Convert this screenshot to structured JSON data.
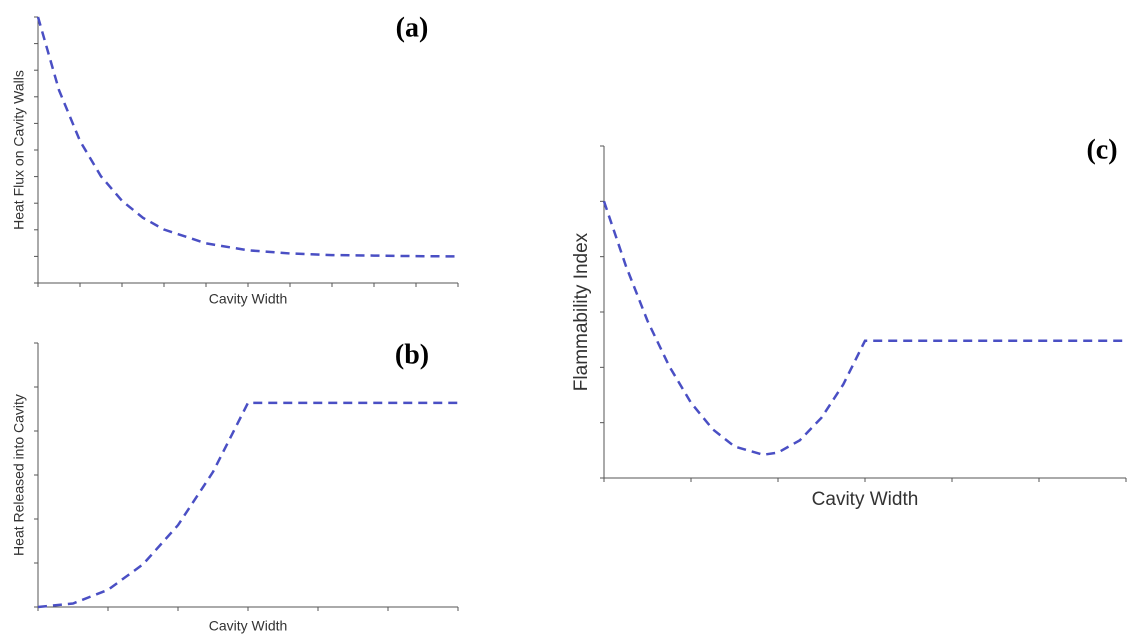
{
  "chart_data": [
    {
      "type": "line",
      "annotation": "(a)",
      "xlabel": "Cavity Width",
      "ylabel": "Heat Flux on Cavity Walls",
      "x": [
        0,
        0.5,
        1,
        1.5,
        2,
        2.5,
        3,
        4,
        5,
        6,
        7,
        8,
        9,
        10
      ],
      "values": [
        10,
        7.25,
        5.34,
        4.01,
        3.09,
        2.45,
        2.01,
        1.49,
        1.23,
        1.11,
        1.05,
        1.03,
        1.01,
        1.0
      ],
      "color": "#4a4fc4",
      "line_style": "dashed",
      "xlim": [
        0,
        10
      ],
      "xticks": [
        0,
        1,
        2,
        3,
        4,
        5,
        6,
        7,
        8,
        9,
        10
      ],
      "ylim": [
        0,
        10
      ],
      "yticks": [
        0,
        1,
        2,
        3,
        4,
        5,
        6,
        7,
        8,
        9,
        10
      ]
    },
    {
      "type": "line",
      "annotation": "(b)",
      "xlabel": "Cavity Width",
      "ylabel": "Heat Released into Cavity",
      "x": [
        0,
        0.5,
        1,
        1.5,
        2,
        2.5,
        3,
        4,
        5,
        6
      ],
      "values": [
        0,
        0.08,
        0.39,
        0.97,
        1.86,
        3.07,
        4.64,
        4.64,
        4.64,
        4.64
      ],
      "color": "#4a4fc4",
      "line_style": "dashed",
      "xlim": [
        0,
        6
      ],
      "xticks": [
        0,
        1,
        2,
        3,
        4,
        5,
        6
      ],
      "ylim": [
        0,
        6
      ],
      "yticks": [
        0,
        1,
        2,
        3,
        4,
        5,
        6
      ]
    },
    {
      "type": "line",
      "annotation": "(c)",
      "xlabel": "Cavity Width",
      "ylabel": "Flammability Index",
      "x": [
        0,
        0.25,
        0.5,
        0.75,
        1,
        1.25,
        1.5,
        1.83,
        2,
        2.25,
        2.5,
        2.75,
        3,
        4,
        5,
        6
      ],
      "values": [
        5.0,
        3.84,
        2.84,
        2.02,
        1.36,
        0.88,
        0.57,
        0.42,
        0.46,
        0.68,
        1.09,
        1.69,
        2.48,
        2.48,
        2.48,
        2.48
      ],
      "color": "#4a4fc4",
      "line_style": "dashed",
      "xlim": [
        0,
        6
      ],
      "xticks": [
        0,
        1,
        2,
        3,
        4,
        5,
        6
      ],
      "ylim": [
        0,
        6
      ],
      "yticks": [
        0,
        1,
        2,
        3,
        4,
        5,
        6
      ]
    }
  ]
}
